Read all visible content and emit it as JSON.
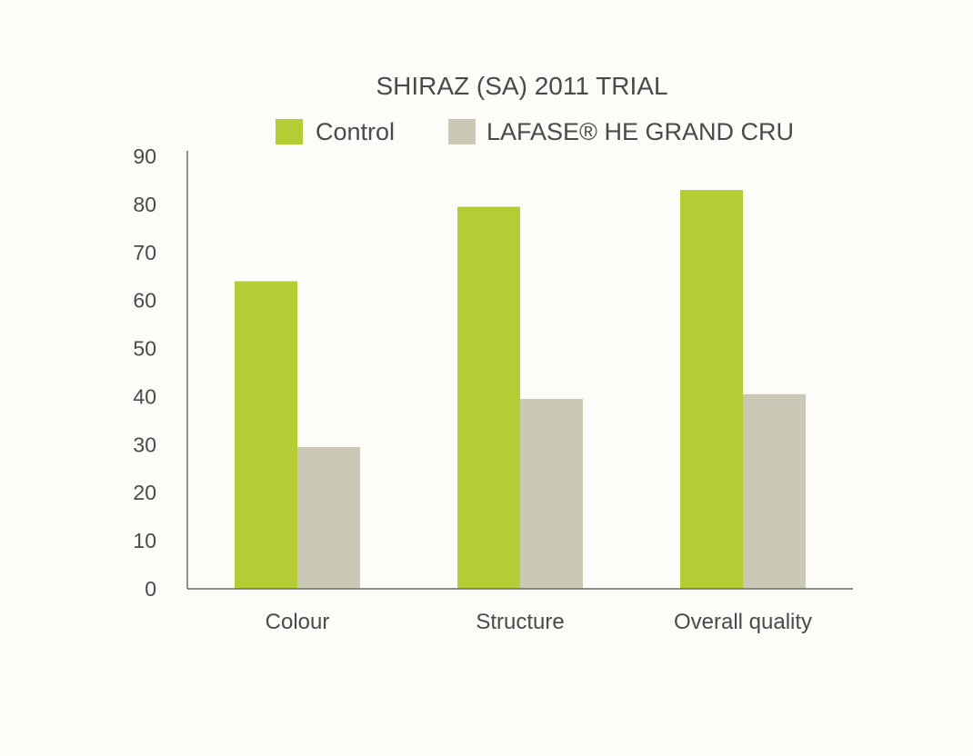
{
  "chart_data": {
    "type": "bar",
    "title": "SHIRAZ (SA) 2011 TRIAL",
    "xlabel": "",
    "ylabel": "",
    "categories": [
      "Colour",
      "Structure",
      "Overall quality"
    ],
    "series": [
      {
        "name": "Control",
        "color": "#b5cd35",
        "values": [
          64,
          79.5,
          83
        ]
      },
      {
        "name": "LAFASE® HE GRAND CRU",
        "color": "#cbc8b5",
        "values": [
          29.5,
          39.5,
          40.5
        ]
      }
    ],
    "ylim": [
      0,
      90
    ],
    "yticks": [
      "0",
      "10",
      "20",
      "30",
      "40",
      "50",
      "60",
      "70",
      "80",
      "90"
    ],
    "grid": false,
    "legend_position": "top"
  }
}
